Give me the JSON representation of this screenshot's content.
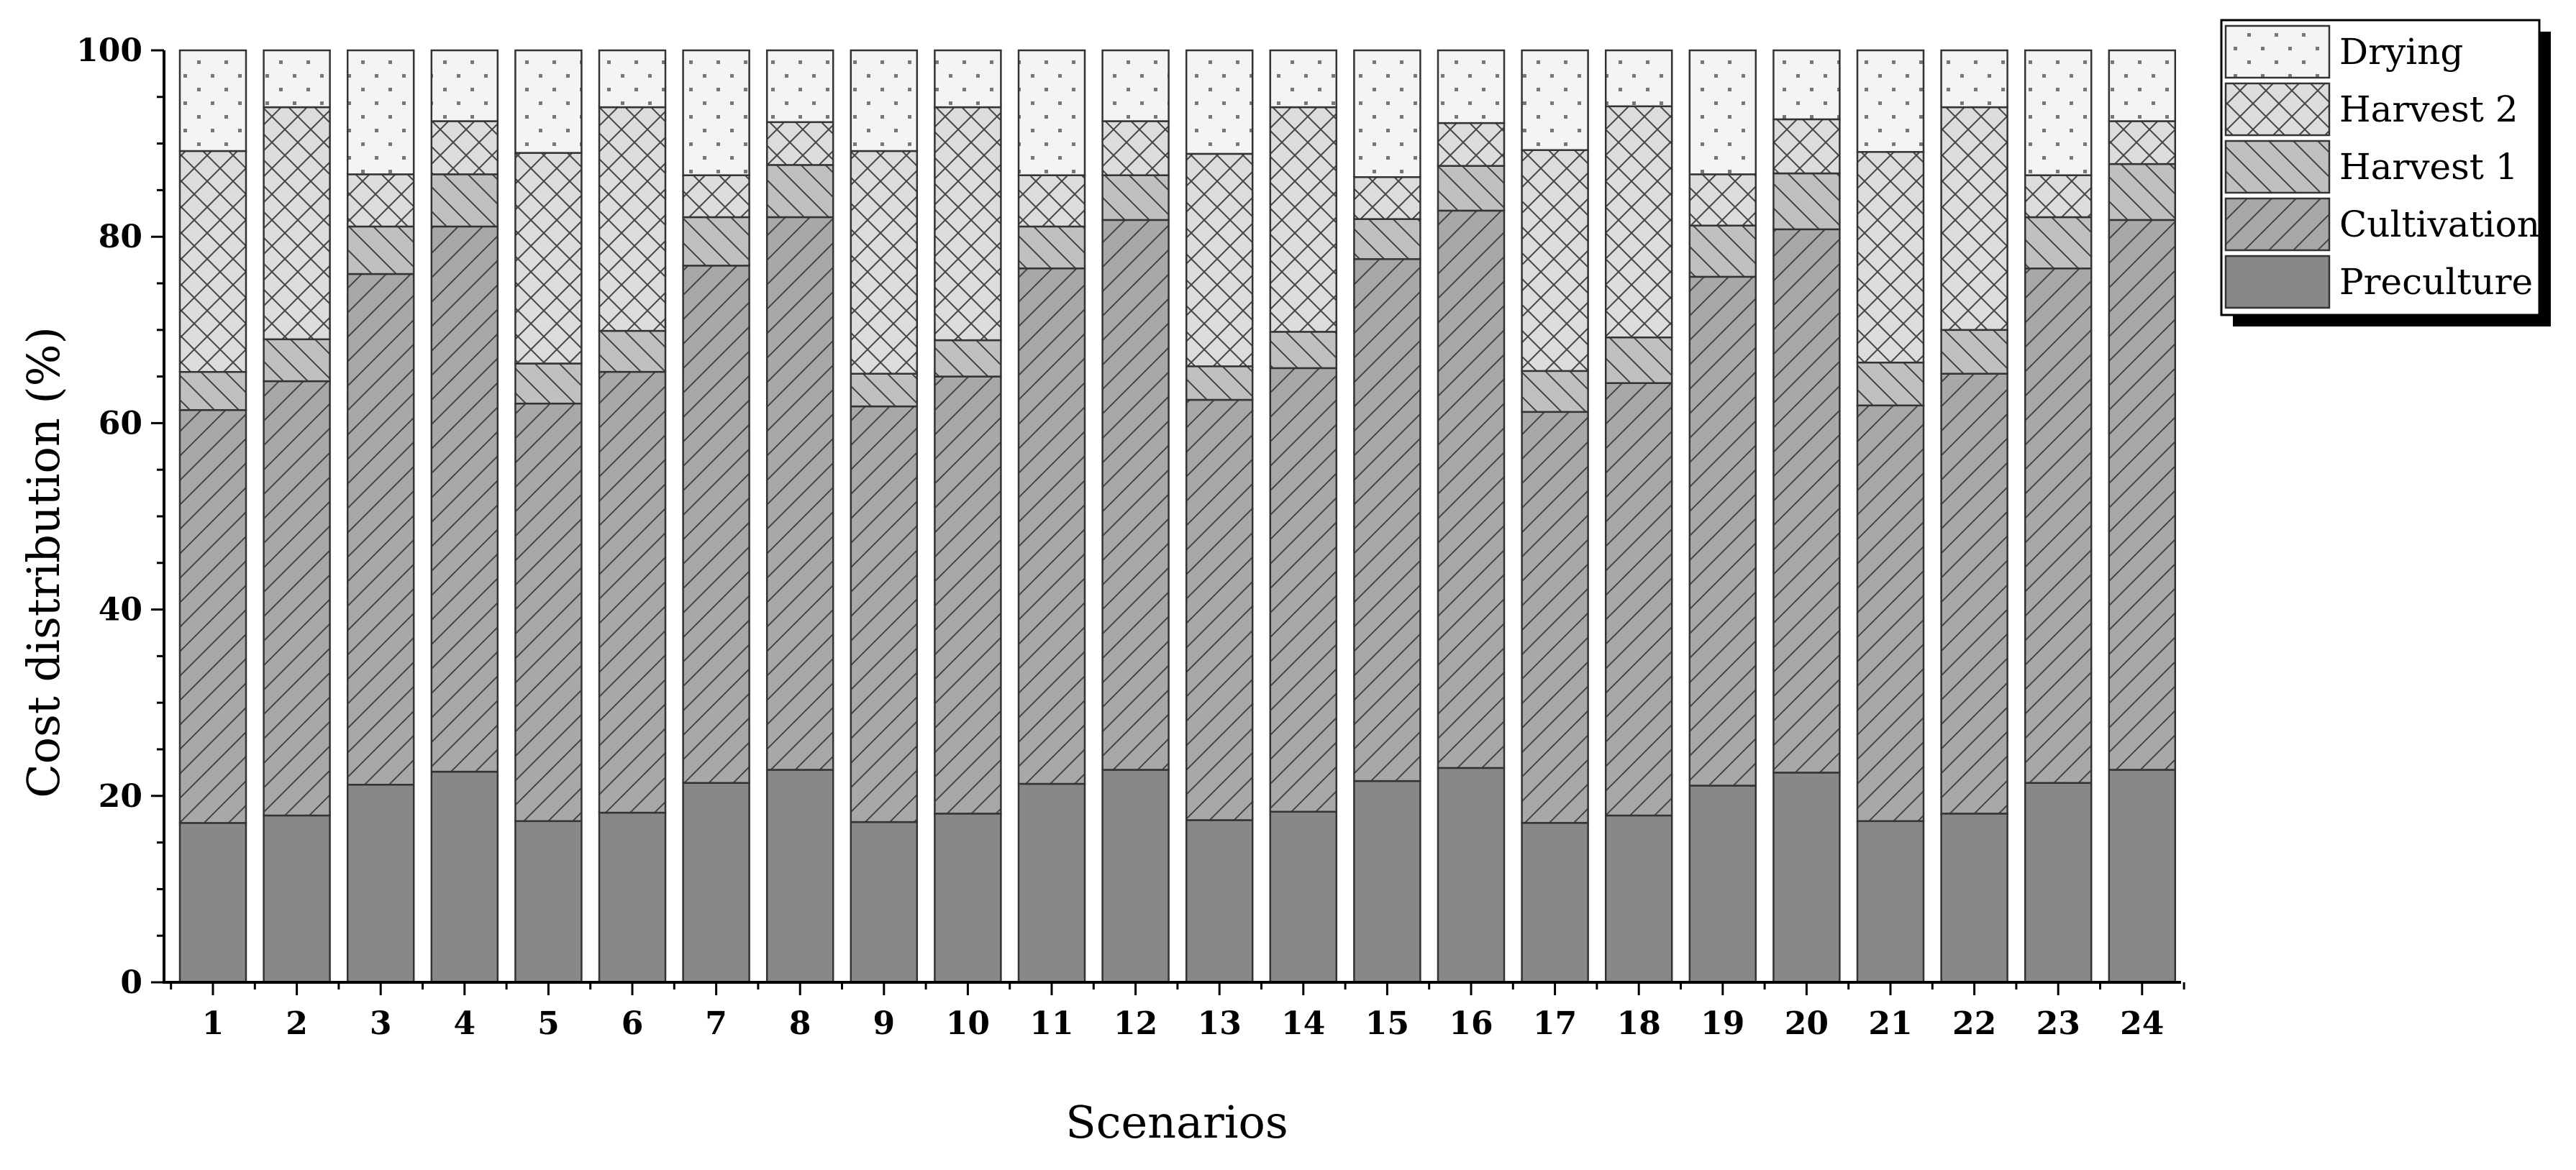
{
  "chart_data": {
    "type": "bar",
    "stacked": true,
    "title": "",
    "xlabel": "Scenarios",
    "ylabel": "Cost distribution (%)",
    "ylim": [
      0,
      100
    ],
    "yticks": [
      "0",
      "20",
      "40",
      "60",
      "80",
      "100"
    ],
    "categories": [
      "1",
      "2",
      "3",
      "4",
      "5",
      "6",
      "7",
      "8",
      "9",
      "10",
      "11",
      "12",
      "13",
      "14",
      "15",
      "16",
      "17",
      "18",
      "19",
      "20",
      "21",
      "22",
      "23",
      "24"
    ],
    "series": [
      {
        "name": "Preculture",
        "pattern": "solid",
        "color": "#888888",
        "values": [
          17.1,
          17.9,
          21.2,
          22.6,
          17.3,
          18.2,
          21.4,
          22.8,
          17.2,
          18.1,
          21.3,
          22.8,
          17.4,
          18.3,
          21.6,
          23.0,
          17.1,
          17.9,
          21.1,
          22.5,
          17.3,
          18.1,
          21.4,
          22.8
        ]
      },
      {
        "name": "Cultivation",
        "pattern": "diagonal",
        "color": "#a8a8a8",
        "values": [
          44.3,
          46.6,
          54.8,
          58.5,
          44.8,
          47.3,
          55.5,
          59.3,
          44.6,
          46.9,
          55.3,
          59.0,
          45.1,
          47.6,
          56.0,
          59.8,
          44.1,
          46.4,
          54.6,
          58.3,
          44.6,
          47.2,
          55.2,
          59.0
        ]
      },
      {
        "name": "Harvest 1",
        "pattern": "back-diagonal",
        "color": "#c0c0c0",
        "values": [
          4.1,
          4.5,
          5.1,
          5.6,
          4.3,
          4.4,
          5.2,
          5.6,
          3.5,
          3.9,
          4.5,
          4.8,
          3.6,
          3.9,
          4.3,
          4.8,
          4.4,
          4.9,
          5.5,
          6.0,
          4.6,
          4.7,
          5.5,
          6.0
        ]
      },
      {
        "name": "Harvest 2",
        "pattern": "crosshatch",
        "color": "#dcdcdc",
        "values": [
          23.7,
          24.9,
          5.6,
          5.7,
          22.6,
          24.0,
          4.5,
          4.6,
          23.9,
          25.0,
          5.5,
          5.8,
          22.8,
          24.1,
          4.5,
          4.6,
          23.7,
          24.8,
          5.5,
          5.8,
          22.6,
          23.9,
          4.5,
          4.6
        ]
      },
      {
        "name": "Drying",
        "pattern": "dots",
        "color": "#f4f4f4",
        "values": [
          10.8,
          6.1,
          13.3,
          7.6,
          11.0,
          6.1,
          13.4,
          7.7,
          10.8,
          6.1,
          13.4,
          7.6,
          11.1,
          6.1,
          13.6,
          7.8,
          10.7,
          6.0,
          13.3,
          7.4,
          10.9,
          6.1,
          13.4,
          7.6
        ]
      }
    ],
    "grid": false,
    "legend": "top-right"
  }
}
